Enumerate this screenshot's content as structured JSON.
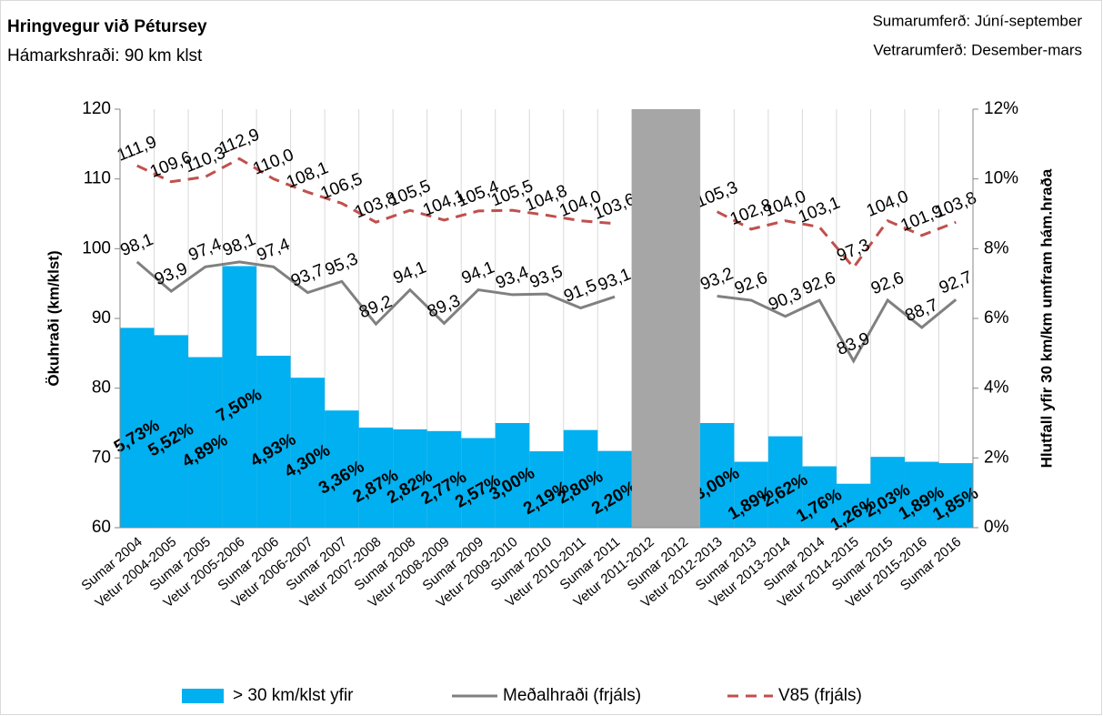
{
  "chart_data": {
    "type": "combo",
    "title": "Hringvegur við Pétursey",
    "subtitle": "Hámarkshraði: 90 km klst",
    "notes": [
      "Sumarumferð:  Júní-september",
      "Vetrarumferð:  Desember-mars"
    ],
    "ylabel": "Ökuhraði (km/klst)",
    "y2label": "Hlutfall yfir 30 km/km umfram hám.hraða",
    "categories": [
      "Sumar 2004",
      "Vetur 2004-2005",
      "Sumar 2005",
      "Vetur 2005-2006",
      "Sumar 2006",
      "Vetur 2006-2007",
      "Sumar 2007",
      "Vetur 2007-2008",
      "Sumar 2008",
      "Vetur 2008-2009",
      "Sumar 2009",
      "Vetur 2009-2010",
      "Sumar 2010",
      "Vetur 2010-2011",
      "Sumar 2011",
      "Vetur 2011-2012",
      "Sumar 2012",
      "Vetur 2012-2013",
      "Sumar 2013",
      "Vetur 2013-2014",
      "Sumar 2014",
      "Vetur 2014-2015",
      "Sumar 2015",
      "Vetur 2015-2016",
      "Sumar 2016"
    ],
    "ylim": [
      60,
      120
    ],
    "yticks": [
      60,
      70,
      80,
      90,
      100,
      110,
      120
    ],
    "y2lim": [
      0,
      12
    ],
    "y2ticks": [
      {
        "value": 0,
        "label": "0%"
      },
      {
        "value": 2,
        "label": "2%"
      },
      {
        "value": 4,
        "label": "4%"
      },
      {
        "value": 6,
        "label": "6%"
      },
      {
        "value": 8,
        "label": "8%"
      },
      {
        "value": 10,
        "label": "10%"
      },
      {
        "value": 12,
        "label": "12%"
      }
    ],
    "vertical_grid": true,
    "legend": "bottom",
    "highlight": {
      "from": "Vetur 2011-2012",
      "to": "Sumar 2012",
      "color": "#a6a6a6"
    },
    "series": [
      {
        "name": "> 30 km/klst yfir",
        "type": "bar",
        "axis": "y2",
        "color": "#00b0f0",
        "values": [
          5.73,
          5.52,
          4.89,
          7.5,
          4.93,
          4.3,
          3.36,
          2.87,
          2.82,
          2.77,
          2.57,
          3.0,
          2.19,
          2.8,
          2.2,
          null,
          null,
          3.0,
          1.89,
          2.62,
          1.76,
          1.26,
          2.03,
          1.89,
          1.85
        ],
        "value_labels": [
          "5,73%",
          "5,52%",
          "4,89%",
          "7,50%",
          "4,93%",
          "4,30%",
          "3,36%",
          "2,87%",
          "2,82%",
          "2,77%",
          "2,57%",
          "3,00%",
          "2,19%",
          "2,80%",
          "2,20%",
          null,
          null,
          "3,00%",
          "1,89%",
          "2,62%",
          "1,76%",
          "1,26%",
          "2,03%",
          "1,89%",
          "1,85%"
        ]
      },
      {
        "name": "Meðalhraði (frjáls)",
        "type": "line",
        "style": "solid",
        "color": "#808080",
        "values": [
          98.1,
          93.9,
          97.4,
          98.1,
          97.4,
          93.7,
          95.3,
          89.2,
          94.1,
          89.3,
          94.1,
          93.4,
          93.5,
          91.5,
          93.1,
          null,
          null,
          93.2,
          92.6,
          90.3,
          92.6,
          83.9,
          92.6,
          88.7,
          92.7
        ],
        "value_labels": [
          "98,1",
          "93,9",
          "97,4",
          "98,1",
          "97,4",
          "93,7",
          "95,3",
          "89,2",
          "94,1",
          "89,3",
          "94,1",
          "93,4",
          "93,5",
          "91,5",
          "93,1",
          null,
          null,
          "93,2",
          "92,6",
          "90,3",
          "92,6",
          "83,9",
          "92,6",
          "88,7",
          "92,7"
        ]
      },
      {
        "name": "V85 (frjáls)",
        "type": "line",
        "style": "dashed",
        "color": "#c0504d",
        "values": [
          111.9,
          109.6,
          110.3,
          112.9,
          110.0,
          108.1,
          106.5,
          103.8,
          105.5,
          104.1,
          105.4,
          105.5,
          104.8,
          104.0,
          103.6,
          null,
          null,
          105.3,
          102.8,
          104.0,
          103.1,
          97.3,
          104.0,
          101.9,
          103.8
        ],
        "value_labels": [
          "111,9",
          "109,6",
          "110,3",
          "112,9",
          "110,0",
          "108,1",
          "106,5",
          "103,8",
          "105,5",
          "104,1",
          "105,4",
          "105,5",
          "104,8",
          "104,0",
          "103,6",
          null,
          null,
          "105,3",
          "102,8",
          "104,0",
          "103,1",
          "97,3",
          "104,0",
          "101,9",
          "103,8"
        ]
      }
    ]
  }
}
